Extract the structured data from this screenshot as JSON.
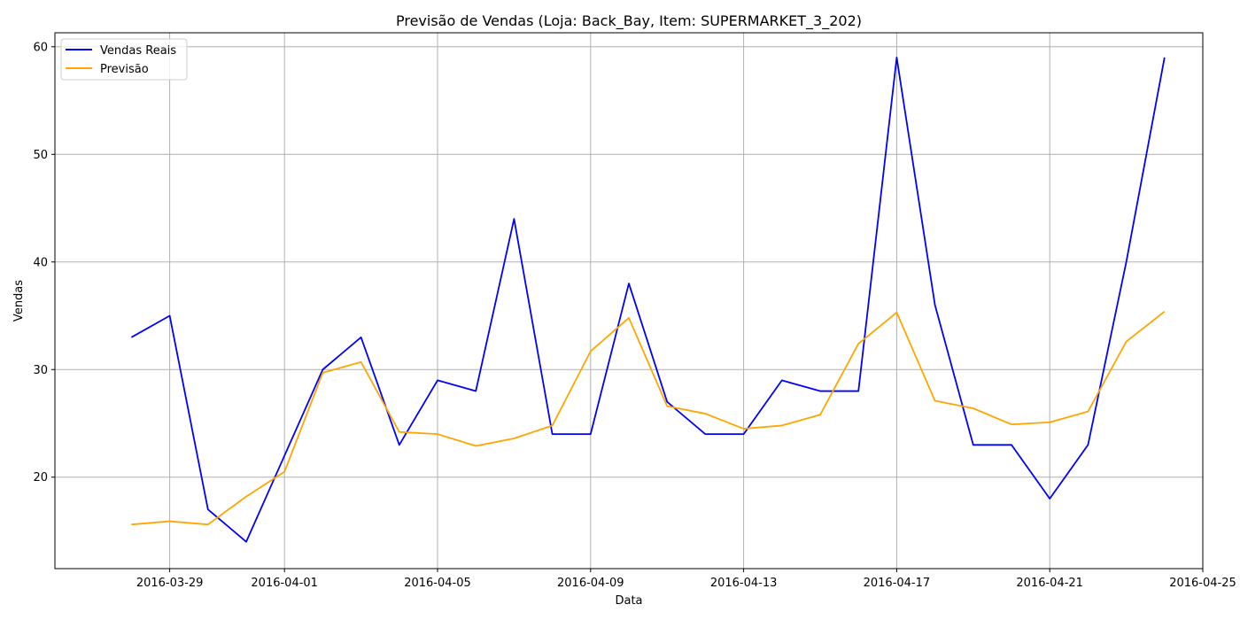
{
  "chart_data": {
    "type": "line",
    "title": "Previsão de Vendas (Loja: Back_Bay, Item: SUPERMARKET_3_202)",
    "xlabel": "Data",
    "ylabel": "Vendas",
    "x_ticks": [
      "2016-03-29",
      "2016-04-01",
      "2016-04-05",
      "2016-04-09",
      "2016-04-13",
      "2016-04-17",
      "2016-04-21",
      "2016-04-25"
    ],
    "y_ticks": [
      20,
      30,
      40,
      50,
      60
    ],
    "xlim": [
      "2016-03-26",
      "2016-04-25"
    ],
    "ylim": [
      11.5,
      61.3
    ],
    "grid": true,
    "legend_position": "top-left",
    "x": [
      "2016-03-28",
      "2016-03-29",
      "2016-03-30",
      "2016-03-31",
      "2016-04-01",
      "2016-04-02",
      "2016-04-03",
      "2016-04-04",
      "2016-04-05",
      "2016-04-06",
      "2016-04-07",
      "2016-04-08",
      "2016-04-09",
      "2016-04-10",
      "2016-04-11",
      "2016-04-12",
      "2016-04-13",
      "2016-04-14",
      "2016-04-15",
      "2016-04-16",
      "2016-04-17",
      "2016-04-18",
      "2016-04-19",
      "2016-04-20",
      "2016-04-21",
      "2016-04-22",
      "2016-04-23",
      "2016-04-24"
    ],
    "series": [
      {
        "name": "Vendas Reais",
        "color": "#0000ff",
        "values": [
          33,
          35,
          17,
          14,
          22,
          30,
          33,
          23,
          29,
          28,
          44,
          24,
          24,
          38,
          27,
          24,
          24,
          29,
          28,
          28,
          59,
          36,
          23,
          23,
          18,
          23,
          40,
          59
        ]
      },
      {
        "name": "Previsão",
        "color": "#ffa500",
        "values": [
          15.6,
          15.9,
          15.6,
          18.2,
          20.5,
          29.7,
          30.7,
          24.2,
          24.0,
          22.9,
          23.6,
          24.8,
          31.7,
          34.8,
          26.6,
          25.9,
          24.5,
          24.8,
          25.8,
          32.4,
          35.3,
          27.1,
          26.4,
          24.9,
          25.1,
          26.1,
          32.6,
          35.4
        ]
      }
    ]
  }
}
